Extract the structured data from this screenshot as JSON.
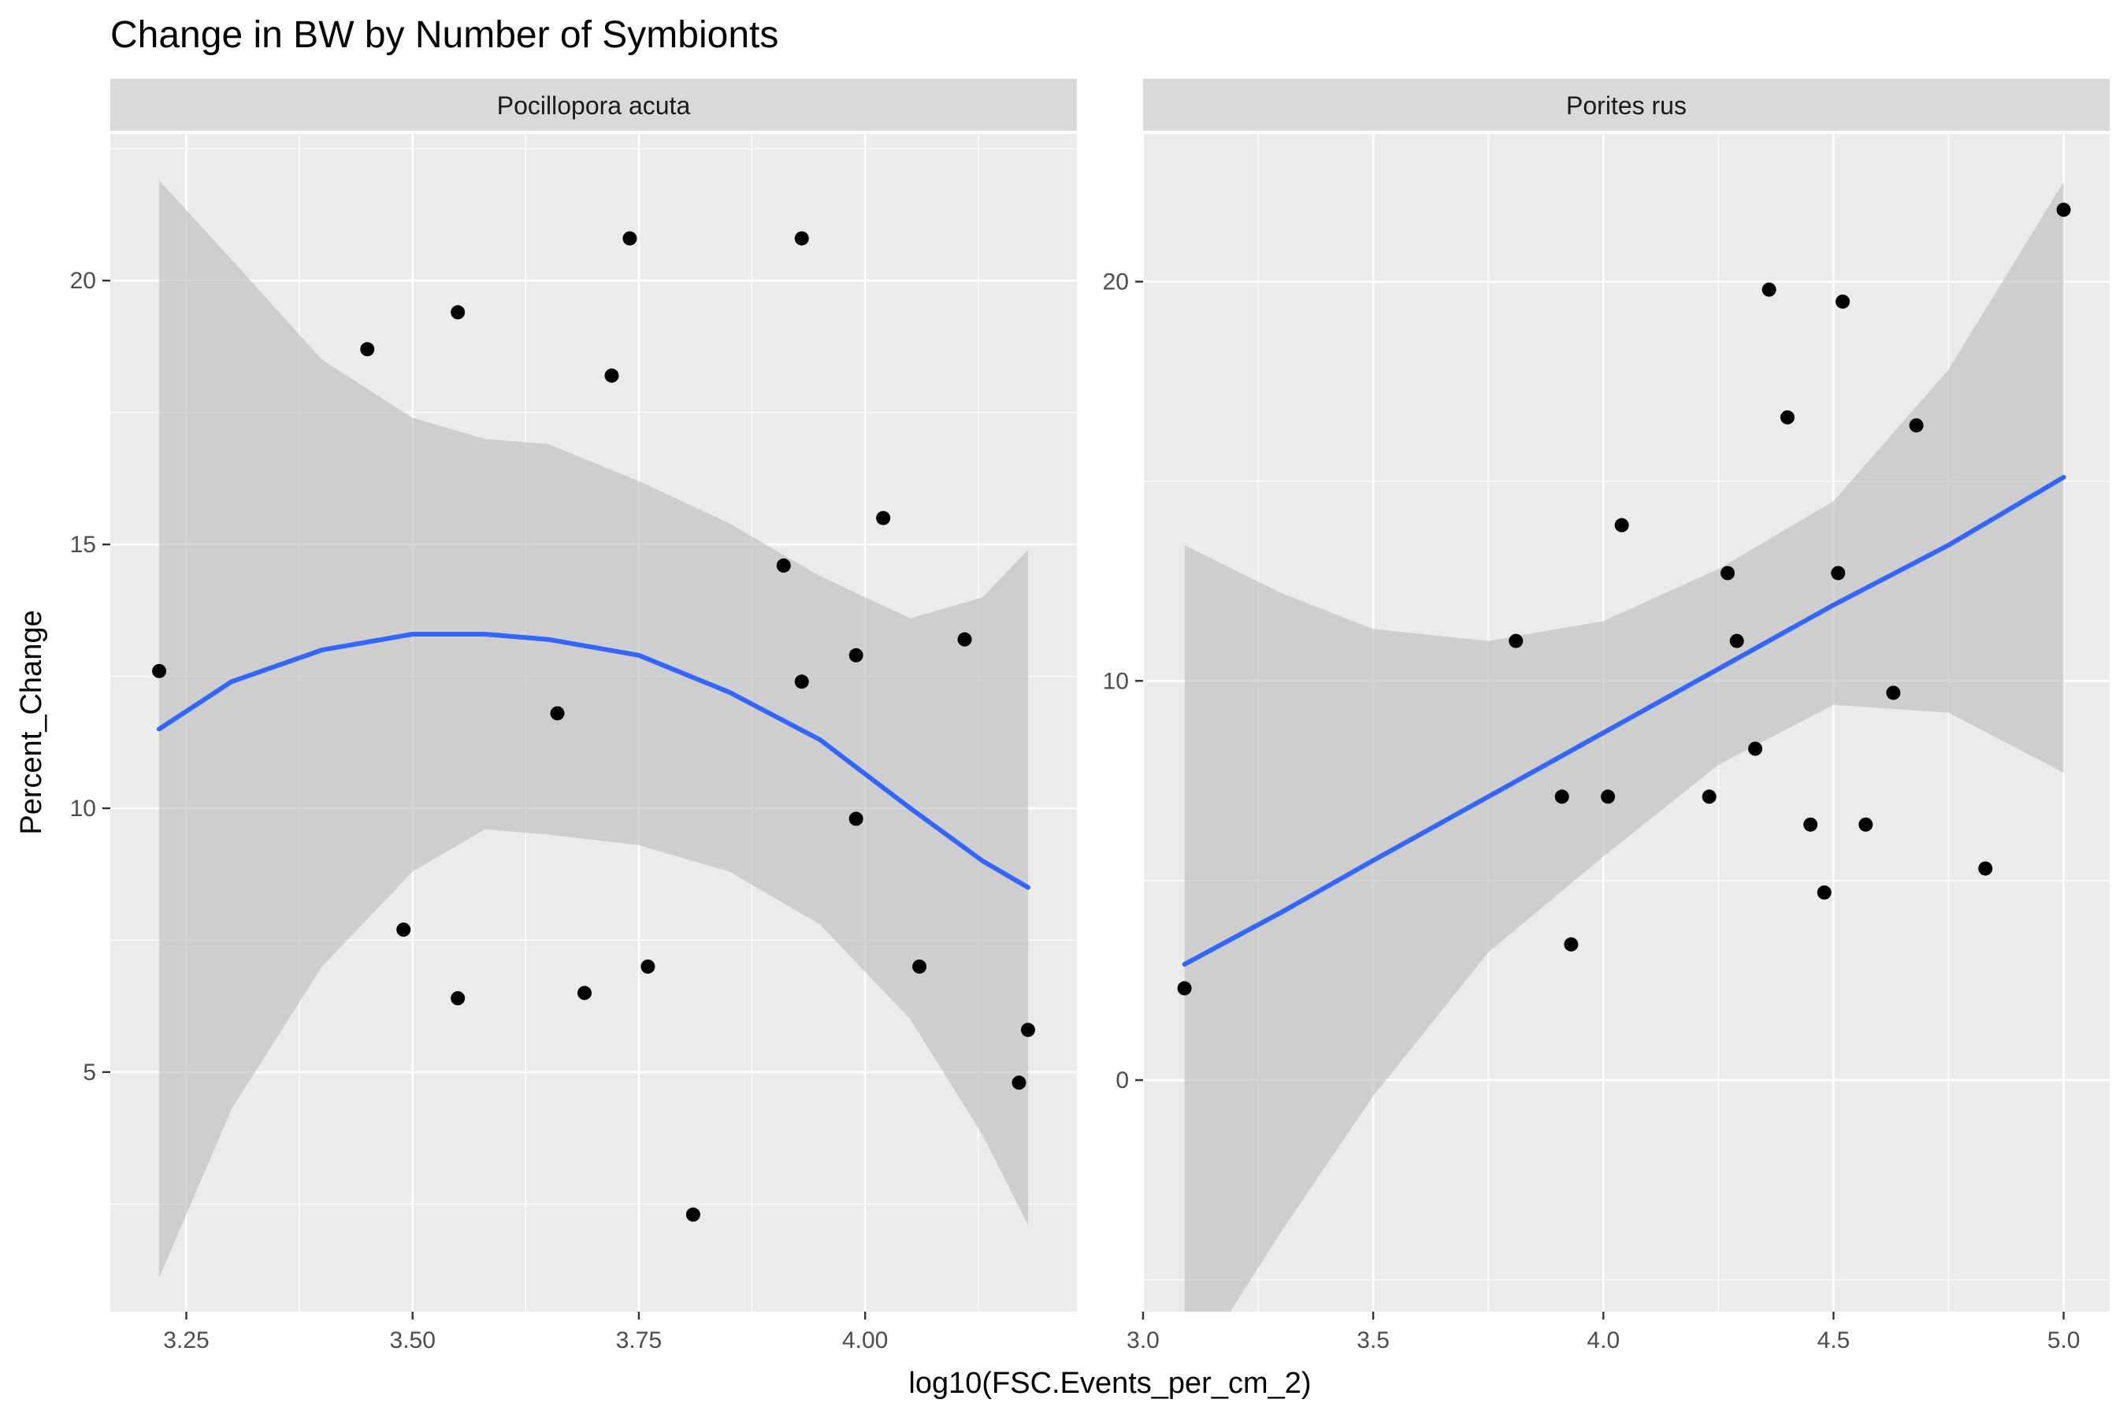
{
  "chart_data": {
    "type": "scatter",
    "title": "Change in BW by Number of Symbionts",
    "xlabel": "log10(FSC.Events_per_cm_2)",
    "ylabel": "Percent_Change",
    "grid": true,
    "colors": {
      "panel_background": "#ebebeb",
      "strip_background": "#d9d9d9",
      "gridline": "#ffffff",
      "point": "#000000",
      "fit_line": "#3366ff",
      "ribbon": "#bdbdbd"
    },
    "panels": [
      {
        "strip": "Pocillopora acuta",
        "xlim": [
          3.166,
          4.234
        ],
        "ylim": [
          0.46,
          22.78
        ],
        "x_ticks": [
          3.25,
          3.5,
          3.75,
          4.0
        ],
        "x_tick_labels": [
          "3.25",
          "3.50",
          "3.75",
          "4.00"
        ],
        "y_ticks": [
          5,
          10,
          15,
          20
        ],
        "y_tick_labels": [
          "5",
          "10",
          "15",
          "20"
        ],
        "points": [
          {
            "x": 3.22,
            "y": 12.6
          },
          {
            "x": 3.45,
            "y": 18.7
          },
          {
            "x": 3.49,
            "y": 7.7
          },
          {
            "x": 3.55,
            "y": 19.4
          },
          {
            "x": 3.55,
            "y": 6.4
          },
          {
            "x": 3.66,
            "y": 11.8
          },
          {
            "x": 3.69,
            "y": 6.5
          },
          {
            "x": 3.72,
            "y": 18.2
          },
          {
            "x": 3.74,
            "y": 20.8
          },
          {
            "x": 3.76,
            "y": 7.0
          },
          {
            "x": 3.81,
            "y": 2.3
          },
          {
            "x": 3.91,
            "y": 14.6
          },
          {
            "x": 3.93,
            "y": 20.8
          },
          {
            "x": 3.93,
            "y": 12.4
          },
          {
            "x": 3.99,
            "y": 12.9
          },
          {
            "x": 3.99,
            "y": 9.8
          },
          {
            "x": 4.02,
            "y": 15.5
          },
          {
            "x": 4.06,
            "y": 7.0
          },
          {
            "x": 4.11,
            "y": 13.2
          },
          {
            "x": 4.17,
            "y": 4.8
          },
          {
            "x": 4.18,
            "y": 5.8
          }
        ],
        "fit": {
          "x": [
            3.22,
            3.3,
            3.4,
            3.5,
            3.58,
            3.65,
            3.75,
            3.85,
            3.95,
            4.05,
            4.13,
            4.18
          ],
          "y": [
            11.5,
            12.4,
            13.0,
            13.3,
            13.3,
            13.2,
            12.9,
            12.2,
            11.3,
            10.0,
            9.0,
            8.5
          ],
          "lower": [
            1.1,
            4.3,
            7.0,
            8.8,
            9.6,
            9.5,
            9.3,
            8.8,
            7.8,
            6.0,
            3.8,
            2.1
          ],
          "upper": [
            21.9,
            20.4,
            18.5,
            17.4,
            17.0,
            16.9,
            16.2,
            15.4,
            14.4,
            13.6,
            14.0,
            14.9
          ]
        }
      },
      {
        "strip": "Porites rus",
        "xlim": [
          3.0,
          5.1
        ],
        "ylim": [
          -5.8,
          23.7
        ],
        "x_ticks": [
          3.0,
          3.5,
          4.0,
          4.5,
          5.0
        ],
        "x_tick_labels": [
          "3.0",
          "3.5",
          "4.0",
          "4.5",
          "5.0"
        ],
        "y_ticks": [
          0,
          10,
          20
        ],
        "y_tick_labels": [
          "0",
          "10",
          "20"
        ],
        "points": [
          {
            "x": 3.09,
            "y": 2.3
          },
          {
            "x": 3.81,
            "y": 11.0
          },
          {
            "x": 3.91,
            "y": 7.1
          },
          {
            "x": 3.93,
            "y": 3.4
          },
          {
            "x": 4.01,
            "y": 7.1
          },
          {
            "x": 4.04,
            "y": 13.9
          },
          {
            "x": 4.23,
            "y": 7.1
          },
          {
            "x": 4.27,
            "y": 12.7
          },
          {
            "x": 4.29,
            "y": 11.0
          },
          {
            "x": 4.33,
            "y": 8.3
          },
          {
            "x": 4.36,
            "y": 19.8
          },
          {
            "x": 4.4,
            "y": 16.6
          },
          {
            "x": 4.45,
            "y": 6.4
          },
          {
            "x": 4.48,
            "y": 4.7
          },
          {
            "x": 4.51,
            "y": 12.7
          },
          {
            "x": 4.52,
            "y": 19.5
          },
          {
            "x": 4.57,
            "y": 6.4
          },
          {
            "x": 4.63,
            "y": 9.7
          },
          {
            "x": 4.68,
            "y": 16.4
          },
          {
            "x": 4.83,
            "y": 5.3
          },
          {
            "x": 5.0,
            "y": 21.8
          }
        ],
        "fit": {
          "x": [
            3.09,
            3.3,
            3.5,
            3.75,
            4.0,
            4.25,
            4.5,
            4.75,
            5.0
          ],
          "y": [
            2.9,
            4.2,
            5.5,
            7.1,
            8.7,
            10.3,
            11.9,
            13.4,
            15.1
          ],
          "lower": [
            -7.6,
            -3.8,
            -0.4,
            3.2,
            5.6,
            7.9,
            9.4,
            9.2,
            7.7
          ],
          "upper": [
            13.4,
            12.2,
            11.3,
            11.0,
            11.5,
            12.8,
            14.5,
            17.8,
            22.5
          ]
        }
      }
    ]
  }
}
